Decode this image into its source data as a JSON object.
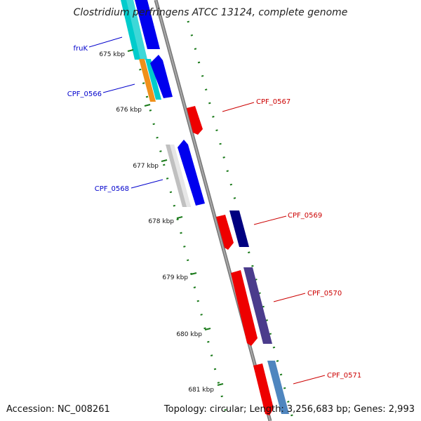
{
  "title": "Clostridium perfringens ATCC 13124, complete genome",
  "accession": "Accession: NC_008261",
  "summary": "Topology: circular; Length: 3,256,683 bp; Genes: 2,993",
  "ticks": [
    {
      "label": "675 kbp"
    },
    {
      "label": "676 kbp"
    },
    {
      "label": "677 kbp"
    },
    {
      "label": "678 kbp"
    },
    {
      "label": "679 kbp"
    },
    {
      "label": "680 kbp"
    },
    {
      "label": "681 kbp"
    }
  ],
  "labels": [
    {
      "text": "fruK",
      "side": "left",
      "color": "#0000cc"
    },
    {
      "text": "CPF_0566",
      "side": "left",
      "color": "#0000cc"
    },
    {
      "text": "CPF_0568",
      "side": "left",
      "color": "#0000cc"
    },
    {
      "text": "CPF_0567",
      "side": "right",
      "color": "#cc0000"
    },
    {
      "text": "CPF_0569",
      "side": "right",
      "color": "#cc0000"
    },
    {
      "text": "CPF_0570",
      "side": "right",
      "color": "#cc0000"
    },
    {
      "text": "CPF_0571",
      "side": "right",
      "color": "#cc0000"
    }
  ],
  "colors": {
    "backbone": "#888888",
    "tick": "#1a7a1a",
    "forward_strand": "#0000ee",
    "reverse_strand": "#ee0000",
    "cog_dark_blue": "#000080",
    "cog_purple": "#4b3c8c",
    "cog_steel_blue": "#4f86bf",
    "cog_cyan": "#00cccc",
    "cog_orange": "#f0901a",
    "cog_gray": "#c0c0c0"
  }
}
